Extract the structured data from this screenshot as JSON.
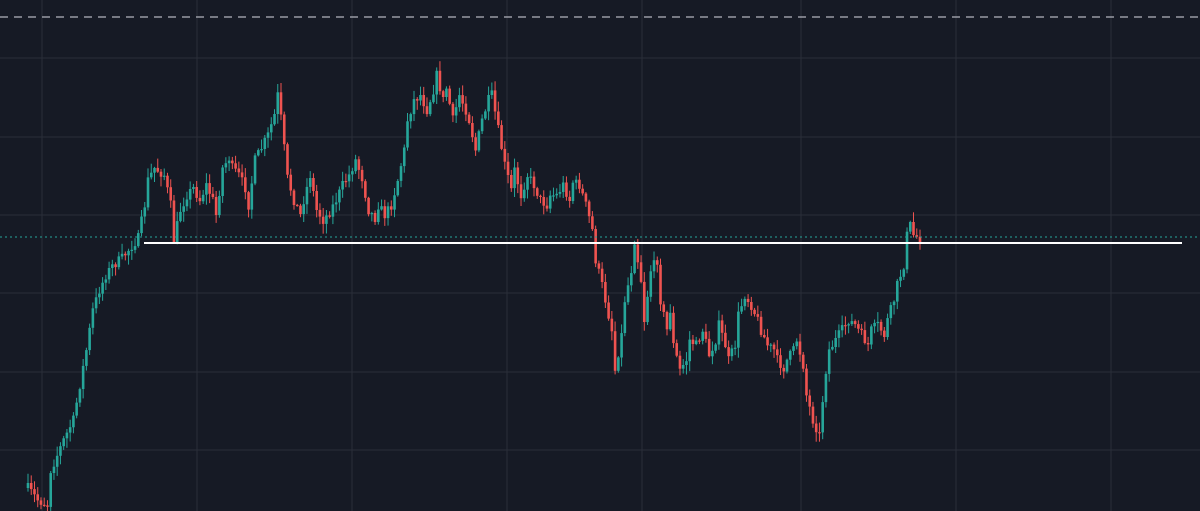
{
  "theme": {
    "background": "#161a25",
    "grid": "#2a2e39",
    "up_color": "#26a69a",
    "down_color": "#ef5350",
    "level_line_color": "#ffffff",
    "last_price_line_color": "#26a69a",
    "top_dashed_line_color": "#b2b5be"
  },
  "chart_data": {
    "type": "candlestick",
    "grid": true,
    "legend": "none",
    "y_range": [
      0,
      511
    ],
    "candle_count": 186,
    "anchors": [
      [
        0,
        488
      ],
      [
        3,
        500
      ],
      [
        6,
        505
      ],
      [
        7,
        470
      ],
      [
        9,
        455
      ],
      [
        11,
        440
      ],
      [
        14,
        420
      ],
      [
        16,
        385
      ],
      [
        18,
        350
      ],
      [
        20,
        310
      ],
      [
        22,
        290
      ],
      [
        24,
        275
      ],
      [
        26,
        266
      ],
      [
        29,
        258
      ],
      [
        31,
        250
      ],
      [
        34,
        238
      ],
      [
        36,
        205
      ],
      [
        37,
        180
      ],
      [
        39,
        168
      ],
      [
        42,
        175
      ],
      [
        44,
        205
      ],
      [
        45,
        240
      ],
      [
        47,
        210
      ],
      [
        49,
        195
      ],
      [
        51,
        188
      ],
      [
        53,
        200
      ],
      [
        55,
        185
      ],
      [
        57,
        200
      ],
      [
        58,
        215
      ],
      [
        60,
        168
      ],
      [
        62,
        158
      ],
      [
        63,
        168
      ],
      [
        65,
        175
      ],
      [
        67,
        188
      ],
      [
        68,
        205
      ],
      [
        70,
        160
      ],
      [
        72,
        148
      ],
      [
        74,
        135
      ],
      [
        76,
        115
      ],
      [
        77,
        95
      ],
      [
        78,
        118
      ],
      [
        80,
        178
      ],
      [
        82,
        200
      ],
      [
        84,
        215
      ],
      [
        85,
        200
      ],
      [
        87,
        175
      ],
      [
        89,
        210
      ],
      [
        91,
        220
      ],
      [
        93,
        212
      ],
      [
        95,
        200
      ],
      [
        97,
        185
      ],
      [
        99,
        175
      ],
      [
        101,
        160
      ],
      [
        103,
        178
      ],
      [
        105,
        210
      ],
      [
        107,
        218
      ],
      [
        108,
        205
      ],
      [
        110,
        215
      ],
      [
        112,
        205
      ],
      [
        114,
        180
      ],
      [
        116,
        150
      ],
      [
        117,
        120
      ],
      [
        119,
        100
      ],
      [
        121,
        95
      ],
      [
        123,
        110
      ],
      [
        125,
        90
      ],
      [
        126,
        75
      ],
      [
        128,
        100
      ],
      [
        129,
        88
      ],
      [
        131,
        120
      ],
      [
        133,
        95
      ],
      [
        135,
        110
      ],
      [
        136,
        120
      ],
      [
        138,
        150
      ],
      [
        140,
        120
      ],
      [
        142,
        100
      ],
      [
        143,
        95
      ],
      [
        145,
        130
      ],
      [
        147,
        165
      ],
      [
        149,
        190
      ],
      [
        150,
        170
      ],
      [
        152,
        195
      ],
      [
        154,
        175
      ],
      [
        156,
        185
      ],
      [
        158,
        200
      ],
      [
        160,
        205
      ],
      [
        161,
        195
      ],
      [
        163,
        195
      ],
      [
        165,
        185
      ],
      [
        167,
        200
      ],
      [
        168,
        182
      ],
      [
        170,
        185
      ],
      [
        172,
        205
      ],
      [
        174,
        230
      ],
      [
        175,
        260
      ],
      [
        177,
        285
      ],
      [
        178,
        300
      ],
      [
        180,
        330
      ],
      [
        181,
        370
      ],
      [
        183,
        335
      ],
      [
        184,
        300
      ],
      [
        186,
        270
      ],
      [
        187,
        240
      ],
      [
        189,
        280
      ],
      [
        190,
        320
      ],
      [
        192,
        270
      ],
      [
        194,
        260
      ],
      [
        195,
        300
      ],
      [
        197,
        330
      ],
      [
        198,
        310
      ],
      [
        199,
        345
      ],
      [
        201,
        370
      ],
      [
        203,
        360
      ],
      [
        204,
        340
      ],
      [
        206,
        345
      ],
      [
        208,
        330
      ],
      [
        210,
        355
      ],
      [
        212,
        340
      ],
      [
        213,
        325
      ],
      [
        215,
        345
      ],
      [
        216,
        360
      ],
      [
        218,
        345
      ],
      [
        219,
        315
      ],
      [
        221,
        295
      ],
      [
        222,
        300
      ],
      [
        223,
        305
      ],
      [
        225,
        320
      ],
      [
        226,
        330
      ],
      [
        228,
        345
      ],
      [
        230,
        350
      ],
      [
        231,
        360
      ],
      [
        233,
        368
      ],
      [
        234,
        360
      ],
      [
        236,
        350
      ],
      [
        237,
        340
      ],
      [
        239,
        365
      ],
      [
        240,
        395
      ],
      [
        242,
        420
      ],
      [
        244,
        435
      ],
      [
        245,
        400
      ],
      [
        246,
        370
      ],
      [
        247,
        350
      ],
      [
        249,
        340
      ],
      [
        251,
        330
      ],
      [
        253,
        320
      ],
      [
        255,
        325
      ],
      [
        257,
        335
      ],
      [
        259,
        345
      ],
      [
        260,
        330
      ],
      [
        262,
        325
      ],
      [
        264,
        335
      ],
      [
        265,
        320
      ],
      [
        267,
        300
      ],
      [
        268,
        285
      ],
      [
        270,
        265
      ],
      [
        271,
        235
      ],
      [
        272,
        225
      ],
      [
        273,
        235
      ],
      [
        275,
        238
      ]
    ],
    "reference_levels": [
      {
        "kind": "horizontal-level",
        "y": 243,
        "x_start_fraction": 0.12,
        "x_end_fraction": 0.985
      },
      {
        "kind": "last-price",
        "y": 237
      }
    ]
  }
}
